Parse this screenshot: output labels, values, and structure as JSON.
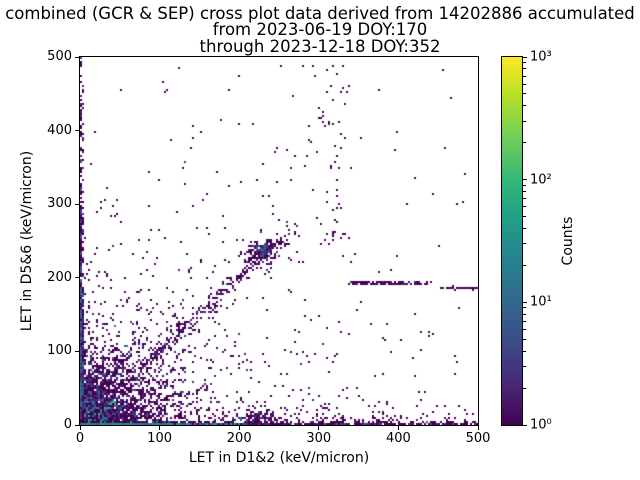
{
  "figure": {
    "background": "#ffffff",
    "spine_color": "#000000",
    "text_color": "#000000"
  },
  "chart_data": {
    "type": "heatmap",
    "subtype": "2d-histogram-scatter-log-counts",
    "seed": 42,
    "title_lines": [
      "combined (GCR & SEP) cross plot data derived from 14202886 accumulated",
      "from 2023-06-19 DOY:170",
      "through 2023-12-18 DOY:352"
    ],
    "xlabel": "LET in D1&2 (keV/micron)",
    "ylabel": "LET in D5&6 (keV/micron)",
    "xlim": [
      0,
      500
    ],
    "ylim": [
      0,
      500
    ],
    "xticks": [
      "0",
      "100",
      "200",
      "300",
      "400",
      "500"
    ],
    "yticks": [
      "0",
      "100",
      "200",
      "300",
      "400",
      "500"
    ],
    "grid": false,
    "legend": "none",
    "colorbar": {
      "label": "Counts",
      "scale": "log10",
      "range": [
        1,
        1000
      ],
      "tick_labels": [
        "10⁰",
        "10¹",
        "10²",
        "10³"
      ],
      "tick_exponents": [
        0,
        1,
        2,
        3
      ],
      "minor_ticks": true,
      "colormap": "viridis",
      "gradient_stops": [
        "#440154",
        "#482878",
        "#3e4989",
        "#31688e",
        "#26828e",
        "#1f9e89",
        "#35b779",
        "#6ece58",
        "#b5de2b",
        "#fde725"
      ]
    },
    "palette": {
      "c1": "#440154",
      "c2": "#482878",
      "c3": "#3e4989",
      "c4": "#31688e",
      "c5": "#26828e",
      "c6": "#1f9e89",
      "c7": "#35b779",
      "c8": "#5ec962",
      "c9": "#b5de2b",
      "c10": "#fde725"
    },
    "features": [
      {
        "name": "background-scatter",
        "kind": "uniform",
        "x0": 0,
        "x1": 500,
        "y0": 0,
        "y1": 500,
        "n": 1000,
        "decay": 250,
        "colors": [
          [
            "c1",
            1
          ]
        ]
      },
      {
        "name": "far-field-sparse",
        "kind": "uniform",
        "x0": 0,
        "x1": 500,
        "y0": 0,
        "y1": 500,
        "n": 60,
        "colors": [
          [
            "c1",
            1
          ]
        ]
      },
      {
        "name": "mid-scatter",
        "kind": "uniform",
        "x0": 90,
        "x1": 400,
        "y0": 15,
        "y1": 400,
        "n": 240,
        "decay": 420,
        "colors": [
          [
            "c1",
            1
          ]
        ]
      },
      {
        "name": "origin-fan-outer",
        "kind": "fan",
        "scale": 55,
        "n": 2600,
        "colors": [
          [
            "c1",
            0.85
          ],
          [
            "c2",
            0.15
          ]
        ]
      },
      {
        "name": "origin-fan-mid",
        "kind": "fan",
        "scale": 26,
        "n": 1300,
        "colors": [
          [
            "c2",
            0.45
          ],
          [
            "c3",
            0.3
          ],
          [
            "c4",
            0.25
          ]
        ]
      },
      {
        "name": "origin-fan-inner",
        "kind": "fan",
        "scale": 13,
        "n": 700,
        "colors": [
          [
            "c4",
            0.5
          ],
          [
            "c5",
            0.5
          ]
        ]
      },
      {
        "name": "origin-core-green",
        "kind": "cluster",
        "cx": 4,
        "cy": 4,
        "sx": 5,
        "sy": 5,
        "n": 260,
        "colors": [
          [
            "c6",
            0.4
          ],
          [
            "c7",
            0.6
          ]
        ]
      },
      {
        "name": "origin-core-bright",
        "kind": "cluster",
        "cx": 2,
        "cy": 2,
        "sx": 2.5,
        "sy": 2.5,
        "n": 150,
        "colors": [
          [
            "c8",
            0.5
          ],
          [
            "c9",
            0.35
          ],
          [
            "c10",
            0.15
          ]
        ]
      },
      {
        "name": "origin-peak-yellow",
        "kind": "cluster",
        "cx": 1.5,
        "cy": 1.5,
        "sx": 1.2,
        "sy": 1.2,
        "n": 45,
        "colors": [
          [
            "c10",
            0.7
          ],
          [
            "c9",
            0.3
          ]
        ]
      },
      {
        "name": "teal-ray",
        "kind": "ray",
        "angle": 35,
        "len": 52,
        "jitter": 1.6,
        "n": 95,
        "colors": [
          [
            "c5",
            0.4
          ],
          [
            "c6",
            0.35
          ],
          [
            "c7",
            0.25
          ]
        ]
      },
      {
        "name": "ray-18deg",
        "kind": "ray",
        "angle": 18,
        "len": 170,
        "jitter": 2.4,
        "n": 80,
        "colors": [
          [
            "c1",
            0.7
          ],
          [
            "c2",
            0.3
          ]
        ]
      },
      {
        "name": "ray-28deg",
        "kind": "ray",
        "angle": 28,
        "len": 125,
        "jitter": 2.4,
        "n": 70,
        "colors": [
          [
            "c1",
            0.7
          ],
          [
            "c2",
            0.3
          ]
        ]
      },
      {
        "name": "ray-45deg",
        "kind": "ray",
        "angle": 45,
        "len": 155,
        "jitter": 2.6,
        "n": 95,
        "colors": [
          [
            "c1",
            0.55
          ],
          [
            "c2",
            0.25
          ],
          [
            "c4",
            0.2
          ]
        ]
      },
      {
        "name": "ray-58deg",
        "kind": "ray",
        "angle": 58,
        "len": 115,
        "jitter": 2.4,
        "n": 65,
        "colors": [
          [
            "c1",
            0.75
          ],
          [
            "c2",
            0.25
          ]
        ]
      },
      {
        "name": "ray-72deg",
        "kind": "ray",
        "angle": 72,
        "len": 95,
        "jitter": 2.2,
        "n": 55,
        "colors": [
          [
            "c1",
            0.8
          ],
          [
            "c2",
            0.2
          ]
        ]
      },
      {
        "name": "left-edge-band",
        "kind": "vband",
        "sx": 2.0,
        "yscale": 150,
        "n": 700,
        "colors": [
          [
            "c1",
            0.75
          ],
          [
            "c2",
            0.15
          ],
          [
            "c3",
            0.1
          ]
        ]
      },
      {
        "name": "left-edge-band-low",
        "kind": "vband",
        "sx": 1.6,
        "yscale": 55,
        "n": 350,
        "colors": [
          [
            "c2",
            0.35
          ],
          [
            "c3",
            0.3
          ],
          [
            "c4",
            0.35
          ]
        ]
      },
      {
        "name": "bottom-edge-band",
        "kind": "hband",
        "sy": 1.8,
        "xscale": 160,
        "puni": 0.45,
        "n": 950,
        "colors": [
          [
            "c1",
            0.7
          ],
          [
            "c2",
            0.2
          ],
          [
            "c3",
            0.1
          ]
        ]
      },
      {
        "name": "bottom-edge-band-teal",
        "kind": "hband",
        "sy": 1.5,
        "xscale": 55,
        "puni": 0,
        "n": 380,
        "colors": [
          [
            "c4",
            0.4
          ],
          [
            "c5",
            0.4
          ],
          [
            "c6",
            0.2
          ]
        ]
      },
      {
        "name": "bottom-fuzz",
        "kind": "hfuzz",
        "y0": 3,
        "yscale": 9,
        "xscale": 210,
        "puni": 0.5,
        "n": 340,
        "colors": [
          [
            "c1",
            1
          ]
        ]
      },
      {
        "name": "diagonal-streak",
        "kind": "diag",
        "t0": 15,
        "t1": 270,
        "s": 5.5,
        "n": 300,
        "colors": [
          [
            "c1",
            0.8
          ],
          [
            "c2",
            0.2
          ]
        ]
      },
      {
        "name": "diagonal-cluster",
        "kind": "cluster",
        "cx": 227,
        "cy": 232,
        "sx": 11,
        "sy": 9,
        "n": 150,
        "colors": [
          [
            "c1",
            0.7
          ],
          [
            "c2",
            0.3
          ]
        ]
      },
      {
        "name": "diagonal-cluster-core",
        "kind": "cluster",
        "cx": 230,
        "cy": 236,
        "sx": 4.5,
        "sy": 4,
        "n": 60,
        "colors": [
          [
            "c2",
            0.4
          ],
          [
            "c3",
            0.4
          ],
          [
            "c4",
            0.2
          ]
        ]
      },
      {
        "name": "cluster-side-trail",
        "kind": "htrail",
        "x0": 232,
        "x1": 264,
        "cy": 247,
        "sy": 2.5,
        "n": 26,
        "colors": [
          [
            "c1",
            1
          ]
        ]
      },
      {
        "name": "upper-column",
        "kind": "column",
        "cx": 316,
        "sx": 12,
        "y0": 250,
        "y1": 497,
        "n": 55,
        "colors": [
          [
            "c1",
            1
          ]
        ]
      },
      {
        "name": "bottom-bump",
        "kind": "cluster",
        "cx": 222,
        "cy": 11,
        "sx": 11,
        "sy": 5,
        "n": 95,
        "colors": [
          [
            "c1",
            0.6
          ],
          [
            "c2",
            0.3
          ],
          [
            "c4",
            0.1
          ]
        ]
      },
      {
        "name": "right-horizontal-trail-a",
        "kind": "htrail",
        "x0": 338,
        "x1": 442,
        "cy": 193,
        "sy": 0.7,
        "n": 95,
        "colors": [
          [
            "c1",
            0.85
          ],
          [
            "c2",
            0.15
          ]
        ]
      },
      {
        "name": "right-horizontal-trail-b",
        "kind": "htrail",
        "x0": 452,
        "x1": 500,
        "cy": 186,
        "sy": 0.7,
        "n": 40,
        "colors": [
          [
            "c1",
            1
          ]
        ]
      }
    ]
  }
}
